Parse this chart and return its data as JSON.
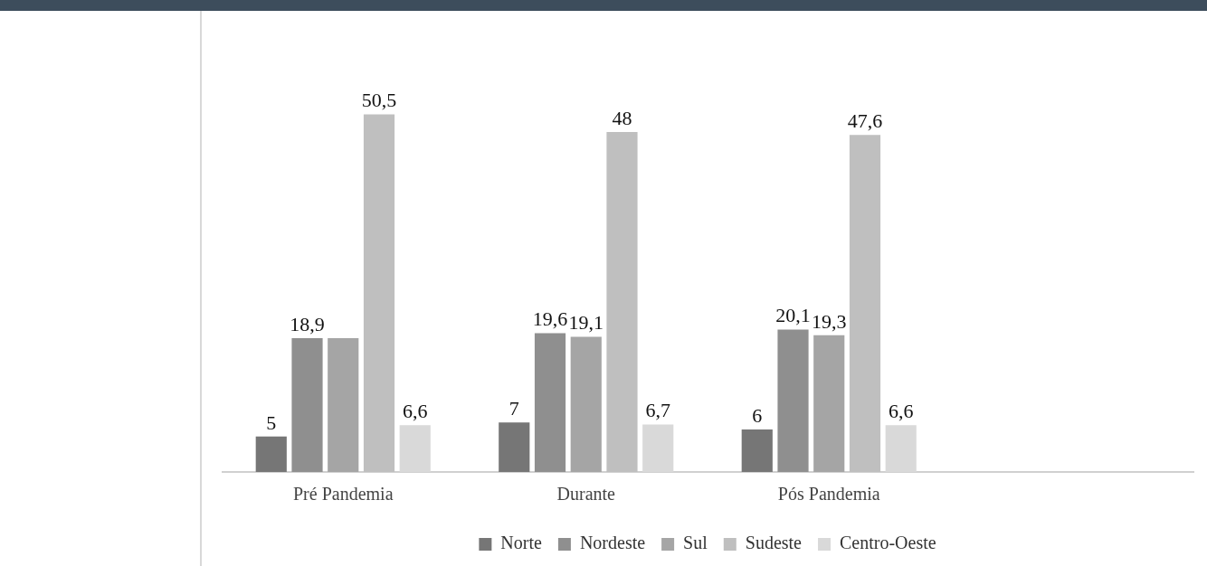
{
  "chart_data": {
    "type": "bar",
    "categories": [
      "Pré Pandemia",
      "Durante",
      "Pós Pandemia",
      null
    ],
    "series": [
      {
        "name": "Norte",
        "color": "#767676",
        "values": [
          5,
          7,
          6,
          null
        ],
        "value_labels": [
          "5",
          "7",
          "6",
          null
        ]
      },
      {
        "name": "Nordeste",
        "color": "#8f8f8f",
        "values": [
          18.9,
          19.6,
          20.1,
          null
        ],
        "value_labels": [
          "18,9",
          "19,6",
          "20,1",
          null
        ]
      },
      {
        "name": "Sul",
        "color": "#a5a5a5",
        "values": [
          18.9,
          19.1,
          19.3,
          null
        ],
        "value_labels": [
          null,
          "19,1",
          "19,3",
          null
        ]
      },
      {
        "name": "Sudeste",
        "color": "#bfbfbf",
        "values": [
          50.5,
          48,
          47.6,
          null
        ],
        "value_labels": [
          "50,5",
          "48",
          "47,6",
          null
        ]
      },
      {
        "name": "Centro-Oeste",
        "color": "#d9d9d9",
        "values": [
          6.6,
          6.7,
          6.6,
          null
        ],
        "value_labels": [
          "6,6",
          "6,7",
          "6,6",
          null
        ]
      }
    ],
    "legend": "bottom",
    "grid": false
  }
}
